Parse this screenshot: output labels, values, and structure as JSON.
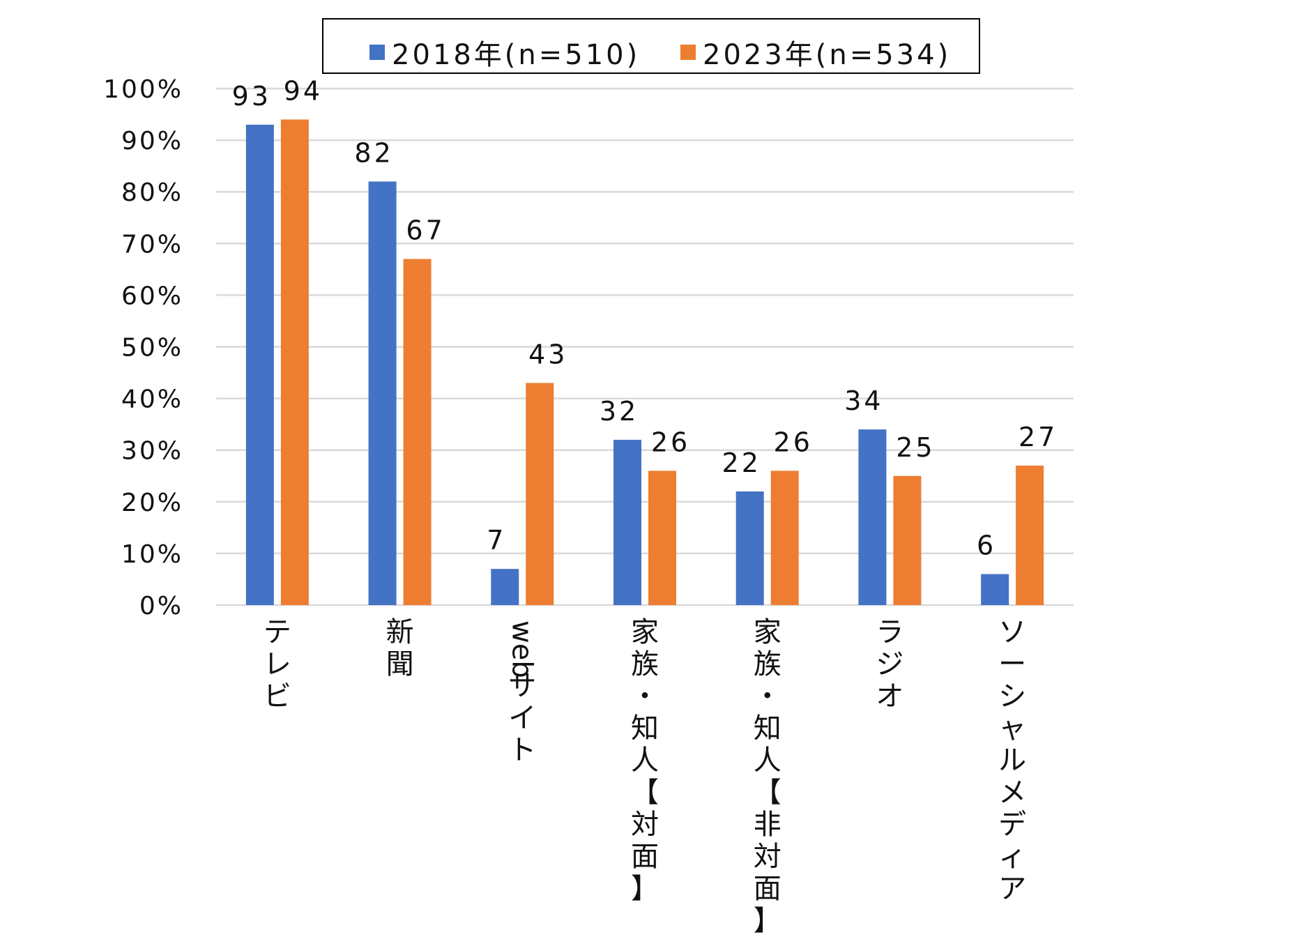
{
  "colors": {
    "series_2018": "#4472C4",
    "series_2023": "#ED7D31",
    "grid": "#D9D9D9"
  },
  "chart_data": {
    "type": "bar",
    "categories": [
      "テレビ",
      "新聞",
      "webサイト",
      "家族・知人【対面】",
      "家族・知人【非対面】",
      "ラジオ",
      "ソーシャルメディア"
    ],
    "series": [
      {
        "name": "2018年(n=510)",
        "values": [
          93,
          82,
          7,
          32,
          22,
          34,
          6
        ]
      },
      {
        "name": "2023年(n=534)",
        "values": [
          94,
          67,
          43,
          26,
          26,
          25,
          27
        ]
      }
    ],
    "ylim": [
      0,
      100
    ],
    "yticks": [
      "0%",
      "10%",
      "20%",
      "30%",
      "40%",
      "50%",
      "60%",
      "70%",
      "80%",
      "90%",
      "100%"
    ],
    "grid": true,
    "legend": "top"
  }
}
